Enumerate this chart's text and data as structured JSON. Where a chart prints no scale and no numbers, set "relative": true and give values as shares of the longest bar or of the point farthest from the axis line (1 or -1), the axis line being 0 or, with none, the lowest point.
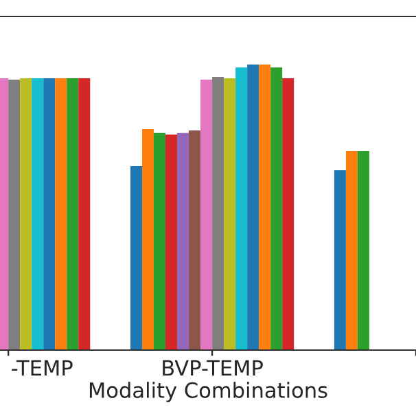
{
  "chart_data": {
    "type": "bar",
    "relative": true,
    "xlabel": "Modality Combinations",
    "categories": [
      "-TEMP",
      "BVP-TEMP",
      null
    ],
    "series": [
      {
        "color": "#1f77b4",
        "values": [
          null,
          0.644,
          0.63
        ]
      },
      {
        "color": "#ff7f0e",
        "values": [
          null,
          0.774,
          0.697
        ]
      },
      {
        "color": "#2ca02c",
        "values": [
          null,
          0.76,
          0.697
        ]
      },
      {
        "color": "#d62728",
        "values": [
          null,
          0.755,
          null
        ]
      },
      {
        "color": "#9467bd",
        "values": [
          null,
          0.76,
          null
        ]
      },
      {
        "color": "#8c564b",
        "values": [
          null,
          0.769,
          null
        ]
      },
      {
        "color": "#e377c2",
        "values": [
          0.952,
          0.947,
          null
        ]
      },
      {
        "color": "#7f7f7f",
        "values": [
          0.947,
          0.957,
          null
        ]
      },
      {
        "color": "#bcbd22",
        "values": [
          0.952,
          0.952,
          null
        ]
      },
      {
        "color": "#17becf",
        "values": [
          0.952,
          0.99,
          null
        ]
      },
      {
        "color": "#1f77b4",
        "values": [
          0.952,
          1,
          null
        ]
      },
      {
        "color": "#ff7f0e",
        "values": [
          0.952,
          1,
          null
        ]
      },
      {
        "color": "#2ca02c",
        "values": [
          0.952,
          0.99,
          null
        ]
      },
      {
        "color": "#d62728",
        "values": [
          0.952,
          0.952,
          null
        ]
      }
    ]
  }
}
